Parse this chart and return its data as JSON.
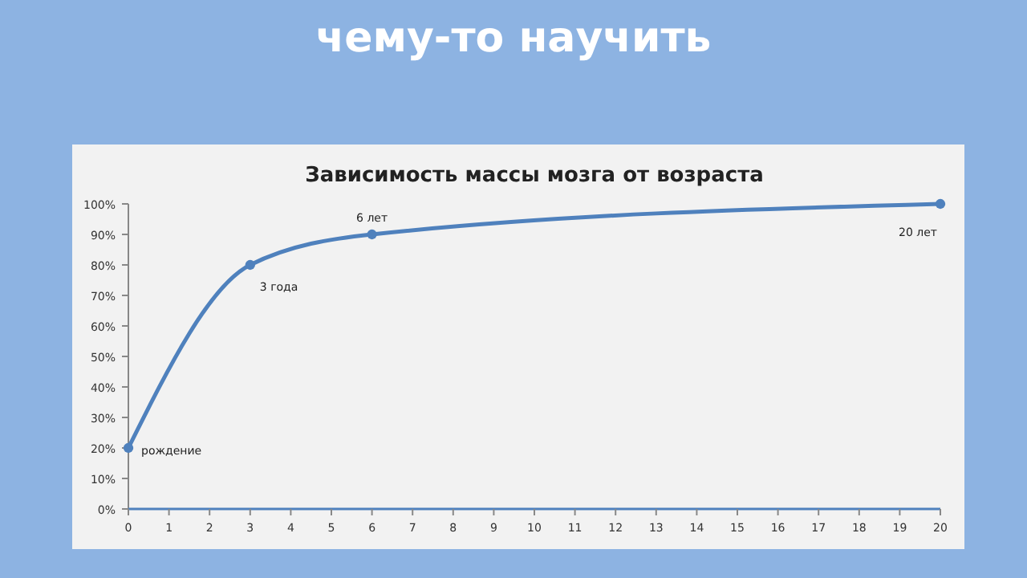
{
  "chart_data": {
    "type": "line",
    "title": "Зависимость массы мозга от возраста",
    "x": [
      0,
      3,
      6,
      20
    ],
    "series": [
      {
        "color": "#4f81bd",
        "values": [
          20,
          80,
          90,
          100
        ]
      }
    ],
    "xlim": [
      0,
      20
    ],
    "xticks": [
      0,
      1,
      2,
      3,
      4,
      5,
      6,
      7,
      8,
      9,
      10,
      11,
      12,
      13,
      14,
      15,
      16,
      17,
      18,
      19,
      20
    ],
    "ylim": [
      0,
      100
    ],
    "yticks": [
      {
        "value": 0,
        "label": "0%"
      },
      {
        "value": 10,
        "label": "10%"
      },
      {
        "value": 20,
        "label": "20%"
      },
      {
        "value": 30,
        "label": "30%"
      },
      {
        "value": 40,
        "label": "40%"
      },
      {
        "value": 50,
        "label": "50%"
      },
      {
        "value": 60,
        "label": "60%"
      },
      {
        "value": 70,
        "label": "70%"
      },
      {
        "value": 80,
        "label": "80%"
      },
      {
        "value": 90,
        "label": "90%"
      },
      {
        "value": 100,
        "label": "100%"
      }
    ],
    "marker": "circle",
    "line_style": "solid",
    "grid": false,
    "annotations": [
      "чему-то научить",
      {
        "text": "рождение",
        "x": 0,
        "y": 20
      },
      {
        "text": "3 года",
        "x": 3,
        "y": 80
      },
      {
        "text": "6 лет",
        "x": 6,
        "y": 90
      },
      {
        "text": "20 лет",
        "x": 20,
        "y": 100
      }
    ]
  }
}
